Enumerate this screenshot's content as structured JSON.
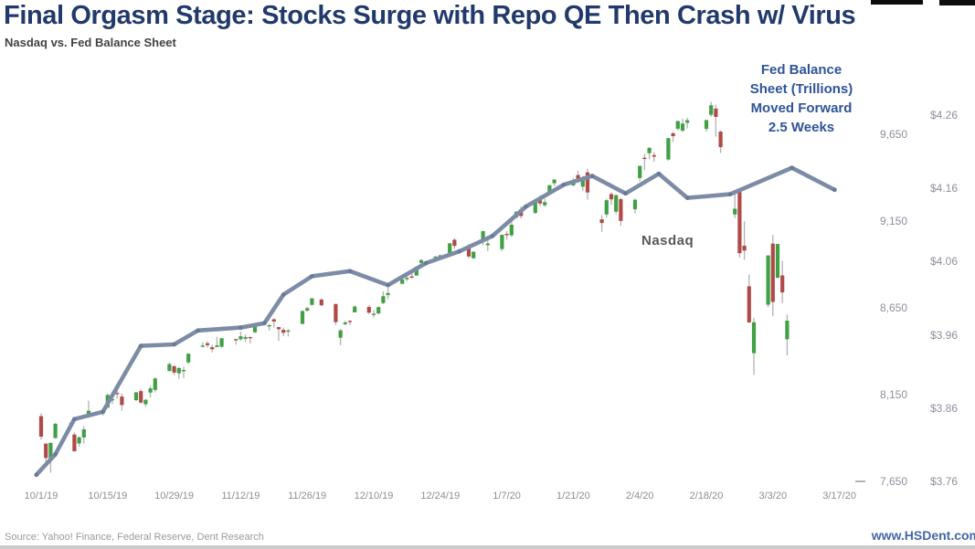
{
  "header": {
    "title": "Final Orgasm Stage: Stocks Surge with Repo QE Then Crash w/ Virus",
    "subtitle": "Nasdaq vs. Fed Balance Sheet"
  },
  "annotations": {
    "fed_note": "Fed Balance\nSheet (Trillions)\nMoved Forward\n2.5 Weeks",
    "nasdaq_series_label": "Nasdaq"
  },
  "footer": {
    "source": "Source: Yahoo! Finance, Federal Reserve, Dent Research",
    "website": "www.HSDent.com"
  },
  "colors": {
    "title_navy": "#213a6b",
    "annotation_blue": "#2f5497",
    "candle_up_green": "#3fa044",
    "candle_down_red": "#b04a48",
    "wick_gray": "#b5b0b0",
    "fed_line": "#7d8ca6",
    "fed_line_node": "#5e7090",
    "axis_text_gray": "#8f8f8f",
    "website_blue": "#4466a6"
  },
  "chart_data": {
    "type": "candlestick+line",
    "title": "Nasdaq vs. Fed Balance Sheet",
    "grid": "off",
    "x_ticks": [
      "10/1/19",
      "10/15/19",
      "10/29/19",
      "11/12/19",
      "11/26/19",
      "12/10/19",
      "12/24/19",
      "1/7/20",
      "1/21/20",
      "2/4/20",
      "2/18/20",
      "3/3/20",
      "3/17/20"
    ],
    "nasdaq_axis": {
      "side": "right-inner",
      "labels": [
        "9,650",
        "9,150",
        "8,650",
        "8,150",
        "7,650"
      ],
      "values": [
        9650,
        9150,
        8650,
        8150,
        7650
      ],
      "range": [
        7650,
        9650
      ]
    },
    "fed_axis": {
      "side": "right-outer",
      "labels": [
        "$4.26",
        "$4.16",
        "$4.06",
        "$3.96",
        "$3.86",
        "$3.76"
      ],
      "values": [
        4.26,
        4.16,
        4.06,
        3.96,
        3.86,
        3.76
      ],
      "range": [
        3.76,
        4.26
      ]
    },
    "candle_format": [
      "date",
      "open",
      "high",
      "low",
      "close"
    ],
    "candles": [
      [
        "2019-10-01",
        8026,
        8043,
        7891,
        7908
      ],
      [
        "2019-10-02",
        7868,
        7868,
        7745,
        7785
      ],
      [
        "2019-10-03",
        7784,
        7874,
        7700,
        7872
      ],
      [
        "2019-10-04",
        7900,
        7986,
        7897,
        7982
      ],
      [
        "2019-10-07",
        7965,
        7988,
        7937,
        7956
      ],
      [
        "2019-10-08",
        7920,
        7932,
        7820,
        7824
      ],
      [
        "2019-10-09",
        7869,
        7910,
        7850,
        7904
      ],
      [
        "2019-10-10",
        7903,
        7969,
        7868,
        7950
      ],
      [
        "2019-10-11",
        8034,
        8115,
        8025,
        8057
      ],
      [
        "2019-10-14",
        8043,
        8068,
        8029,
        8048
      ],
      [
        "2019-10-15",
        8075,
        8156,
        8075,
        8148
      ],
      [
        "2019-10-16",
        8120,
        8135,
        8096,
        8124
      ],
      [
        "2019-10-17",
        8160,
        8178,
        8127,
        8157
      ],
      [
        "2019-10-18",
        8139,
        8157,
        8058,
        8090
      ],
      [
        "2019-10-21",
        8118,
        8166,
        8112,
        8163
      ],
      [
        "2019-10-22",
        8170,
        8180,
        8097,
        8104
      ],
      [
        "2019-10-23",
        8095,
        8126,
        8079,
        8120
      ],
      [
        "2019-10-24",
        8162,
        8201,
        8134,
        8186
      ],
      [
        "2019-10-25",
        8177,
        8250,
        8163,
        8243
      ],
      [
        "2019-10-28",
        8286,
        8335,
        8283,
        8326
      ],
      [
        "2019-10-29",
        8314,
        8319,
        8262,
        8277
      ],
      [
        "2019-10-30",
        8273,
        8310,
        8242,
        8303
      ],
      [
        "2019-10-31",
        8290,
        8311,
        8245,
        8292
      ],
      [
        "2019-11-01",
        8336,
        8386,
        8326,
        8386
      ],
      [
        "2019-11-04",
        8430,
        8451,
        8422,
        8433
      ],
      [
        "2019-11-05",
        8446,
        8457,
        8421,
        8435
      ],
      [
        "2019-11-06",
        8423,
        8438,
        8393,
        8411
      ],
      [
        "2019-11-07",
        8425,
        8483,
        8423,
        8434
      ],
      [
        "2019-11-08",
        8426,
        8475,
        8420,
        8475
      ],
      [
        "2019-11-11",
        8470,
        8472,
        8438,
        8464
      ],
      [
        "2019-11-12",
        8469,
        8514,
        8461,
        8486
      ],
      [
        "2019-11-13",
        8472,
        8496,
        8452,
        8482
      ],
      [
        "2019-11-14",
        8482,
        8483,
        8444,
        8479
      ],
      [
        "2019-11-15",
        8509,
        8541,
        8505,
        8541
      ],
      [
        "2019-11-18",
        8543,
        8557,
        8519,
        8550
      ],
      [
        "2019-11-19",
        8584,
        8589,
        8536,
        8571
      ],
      [
        "2019-11-20",
        8539,
        8540,
        8459,
        8527
      ],
      [
        "2019-11-21",
        8523,
        8536,
        8488,
        8506
      ],
      [
        "2019-11-22",
        8517,
        8527,
        8485,
        8520
      ],
      [
        "2019-11-25",
        8557,
        8633,
        8557,
        8632
      ],
      [
        "2019-11-26",
        8634,
        8656,
        8627,
        8648
      ],
      [
        "2019-11-27",
        8667,
        8706,
        8664,
        8705
      ],
      [
        "2019-11-29",
        8698,
        8705,
        8658,
        8665
      ],
      [
        "2019-12-02",
        8672,
        8674,
        8551,
        8568
      ],
      [
        "2019-12-03",
        8478,
        8528,
        8435,
        8520
      ],
      [
        "2019-12-04",
        8556,
        8575,
        8550,
        8566
      ],
      [
        "2019-12-05",
        8575,
        8579,
        8550,
        8571
      ],
      [
        "2019-12-06",
        8624,
        8665,
        8624,
        8657
      ],
      [
        "2019-12-09",
        8655,
        8665,
        8616,
        8622
      ],
      [
        "2019-12-10",
        8615,
        8637,
        8594,
        8616
      ],
      [
        "2019-12-11",
        8618,
        8658,
        8612,
        8654
      ],
      [
        "2019-12-12",
        8678,
        8745,
        8671,
        8717
      ],
      [
        "2019-12-13",
        8724,
        8768,
        8700,
        8735
      ],
      [
        "2019-12-16",
        8789,
        8815,
        8786,
        8814
      ],
      [
        "2019-12-17",
        8815,
        8831,
        8804,
        8823
      ],
      [
        "2019-12-18",
        8831,
        8861,
        8820,
        8827
      ],
      [
        "2019-12-19",
        8836,
        8887,
        8836,
        8887
      ],
      [
        "2019-12-20",
        8909,
        8931,
        8892,
        8925
      ],
      [
        "2019-12-23",
        8938,
        8950,
        8928,
        8945
      ],
      [
        "2019-12-24",
        8945,
        8957,
        8935,
        8953
      ],
      [
        "2019-12-26",
        8962,
        9022,
        8961,
        9022
      ],
      [
        "2019-12-27",
        9042,
        9052,
        8990,
        9007
      ],
      [
        "2019-12-30",
        9002,
        9017,
        8935,
        8946
      ],
      [
        "2019-12-31",
        8936,
        8975,
        8931,
        8973
      ],
      [
        "2020-01-02",
        9039,
        9093,
        9010,
        9092
      ],
      [
        "2020-01-03",
        9011,
        9065,
        8977,
        9021
      ],
      [
        "2020-01-06",
        8989,
        9072,
        8977,
        9071
      ],
      [
        "2020-01-07",
        9076,
        9092,
        9043,
        9069
      ],
      [
        "2020-01-08",
        9068,
        9168,
        9059,
        9129
      ],
      [
        "2020-01-09",
        9171,
        9208,
        9164,
        9203
      ],
      [
        "2020-01-10",
        9217,
        9235,
        9164,
        9179
      ],
      [
        "2020-01-13",
        9197,
        9274,
        9190,
        9274
      ],
      [
        "2020-01-14",
        9270,
        9298,
        9236,
        9251
      ],
      [
        "2020-01-15",
        9241,
        9278,
        9231,
        9259
      ],
      [
        "2020-01-16",
        9311,
        9357,
        9301,
        9357
      ],
      [
        "2020-01-17",
        9368,
        9393,
        9351,
        9389
      ],
      [
        "2020-01-21",
        9356,
        9397,
        9350,
        9371
      ],
      [
        "2020-01-22",
        9415,
        9439,
        9375,
        9384
      ],
      [
        "2020-01-23",
        9348,
        9409,
        9322,
        9402
      ],
      [
        "2020-01-24",
        9431,
        9451,
        9273,
        9315
      ],
      [
        "2020-01-27",
        9160,
        9185,
        9088,
        9139
      ],
      [
        "2020-01-28",
        9188,
        9278,
        9169,
        9270
      ],
      [
        "2020-01-29",
        9306,
        9316,
        9245,
        9275
      ],
      [
        "2020-01-30",
        9204,
        9303,
        9189,
        9299
      ],
      [
        "2020-01-31",
        9276,
        9286,
        9123,
        9151
      ],
      [
        "2020-02-03",
        9218,
        9278,
        9194,
        9273
      ],
      [
        "2020-02-04",
        9398,
        9468,
        9379,
        9468
      ],
      [
        "2020-02-05",
        9515,
        9537,
        9443,
        9509
      ],
      [
        "2020-02-06",
        9541,
        9575,
        9506,
        9572
      ],
      [
        "2020-02-07",
        9530,
        9547,
        9492,
        9521
      ],
      [
        "2020-02-10",
        9505,
        9629,
        9498,
        9628
      ],
      [
        "2020-02-11",
        9656,
        9664,
        9606,
        9639
      ],
      [
        "2020-02-12",
        9682,
        9729,
        9671,
        9726
      ],
      [
        "2020-02-13",
        9671,
        9739,
        9663,
        9712
      ],
      [
        "2020-02-14",
        9716,
        9744,
        9684,
        9731
      ],
      [
        "2020-02-18",
        9681,
        9733,
        9664,
        9732
      ],
      [
        "2020-02-19",
        9762,
        9838,
        9751,
        9817
      ],
      [
        "2020-02-20",
        9798,
        9820,
        9636,
        9750
      ],
      [
        "2020-02-21",
        9665,
        9672,
        9542,
        9576
      ],
      [
        "2020-02-24",
        9188,
        9322,
        9166,
        9221
      ],
      [
        "2020-02-25",
        9318,
        9327,
        8940,
        8965
      ],
      [
        "2020-02-26",
        9008,
        9148,
        8927,
        8980
      ],
      [
        "2020-02-27",
        8774,
        8842,
        8562,
        8566
      ],
      [
        "2020-02-28",
        8389,
        8591,
        8264,
        8567
      ],
      [
        "2020-03-02",
        8668,
        8952,
        8655,
        8952
      ],
      [
        "2020-03-03",
        9020,
        9070,
        8603,
        8684
      ],
      [
        "2020-03-04",
        8823,
        9020,
        8821,
        9018
      ],
      [
        "2020-03-05",
        8837,
        8921,
        8677,
        8739
      ],
      [
        "2020-03-06",
        8469,
        8612,
        8375,
        8576
      ]
    ],
    "fed_line": {
      "name": "Fed Balance Sheet (Trillions), moved forward 2.5 weeks",
      "point_format": [
        "day_offset_from_10/1/19",
        "trillions"
      ],
      "points": [
        [
          -1,
          3.769
        ],
        [
          3,
          3.797
        ],
        [
          7,
          3.845
        ],
        [
          13,
          3.855
        ],
        [
          21,
          3.945
        ],
        [
          28,
          3.947
        ],
        [
          33,
          3.966
        ],
        [
          42,
          3.97
        ],
        [
          47,
          3.976
        ],
        [
          51,
          4.015
        ],
        [
          57,
          4.04
        ],
        [
          65,
          4.047
        ],
        [
          73,
          4.028
        ],
        [
          81,
          4.058
        ],
        [
          88,
          4.074
        ],
        [
          95,
          4.095
        ],
        [
          102,
          4.135
        ],
        [
          110,
          4.165
        ],
        [
          116,
          4.177
        ],
        [
          123,
          4.153
        ],
        [
          130,
          4.18
        ],
        [
          136,
          4.147
        ],
        [
          145,
          4.152
        ],
        [
          158,
          4.188
        ],
        [
          167,
          4.158
        ]
      ]
    }
  }
}
